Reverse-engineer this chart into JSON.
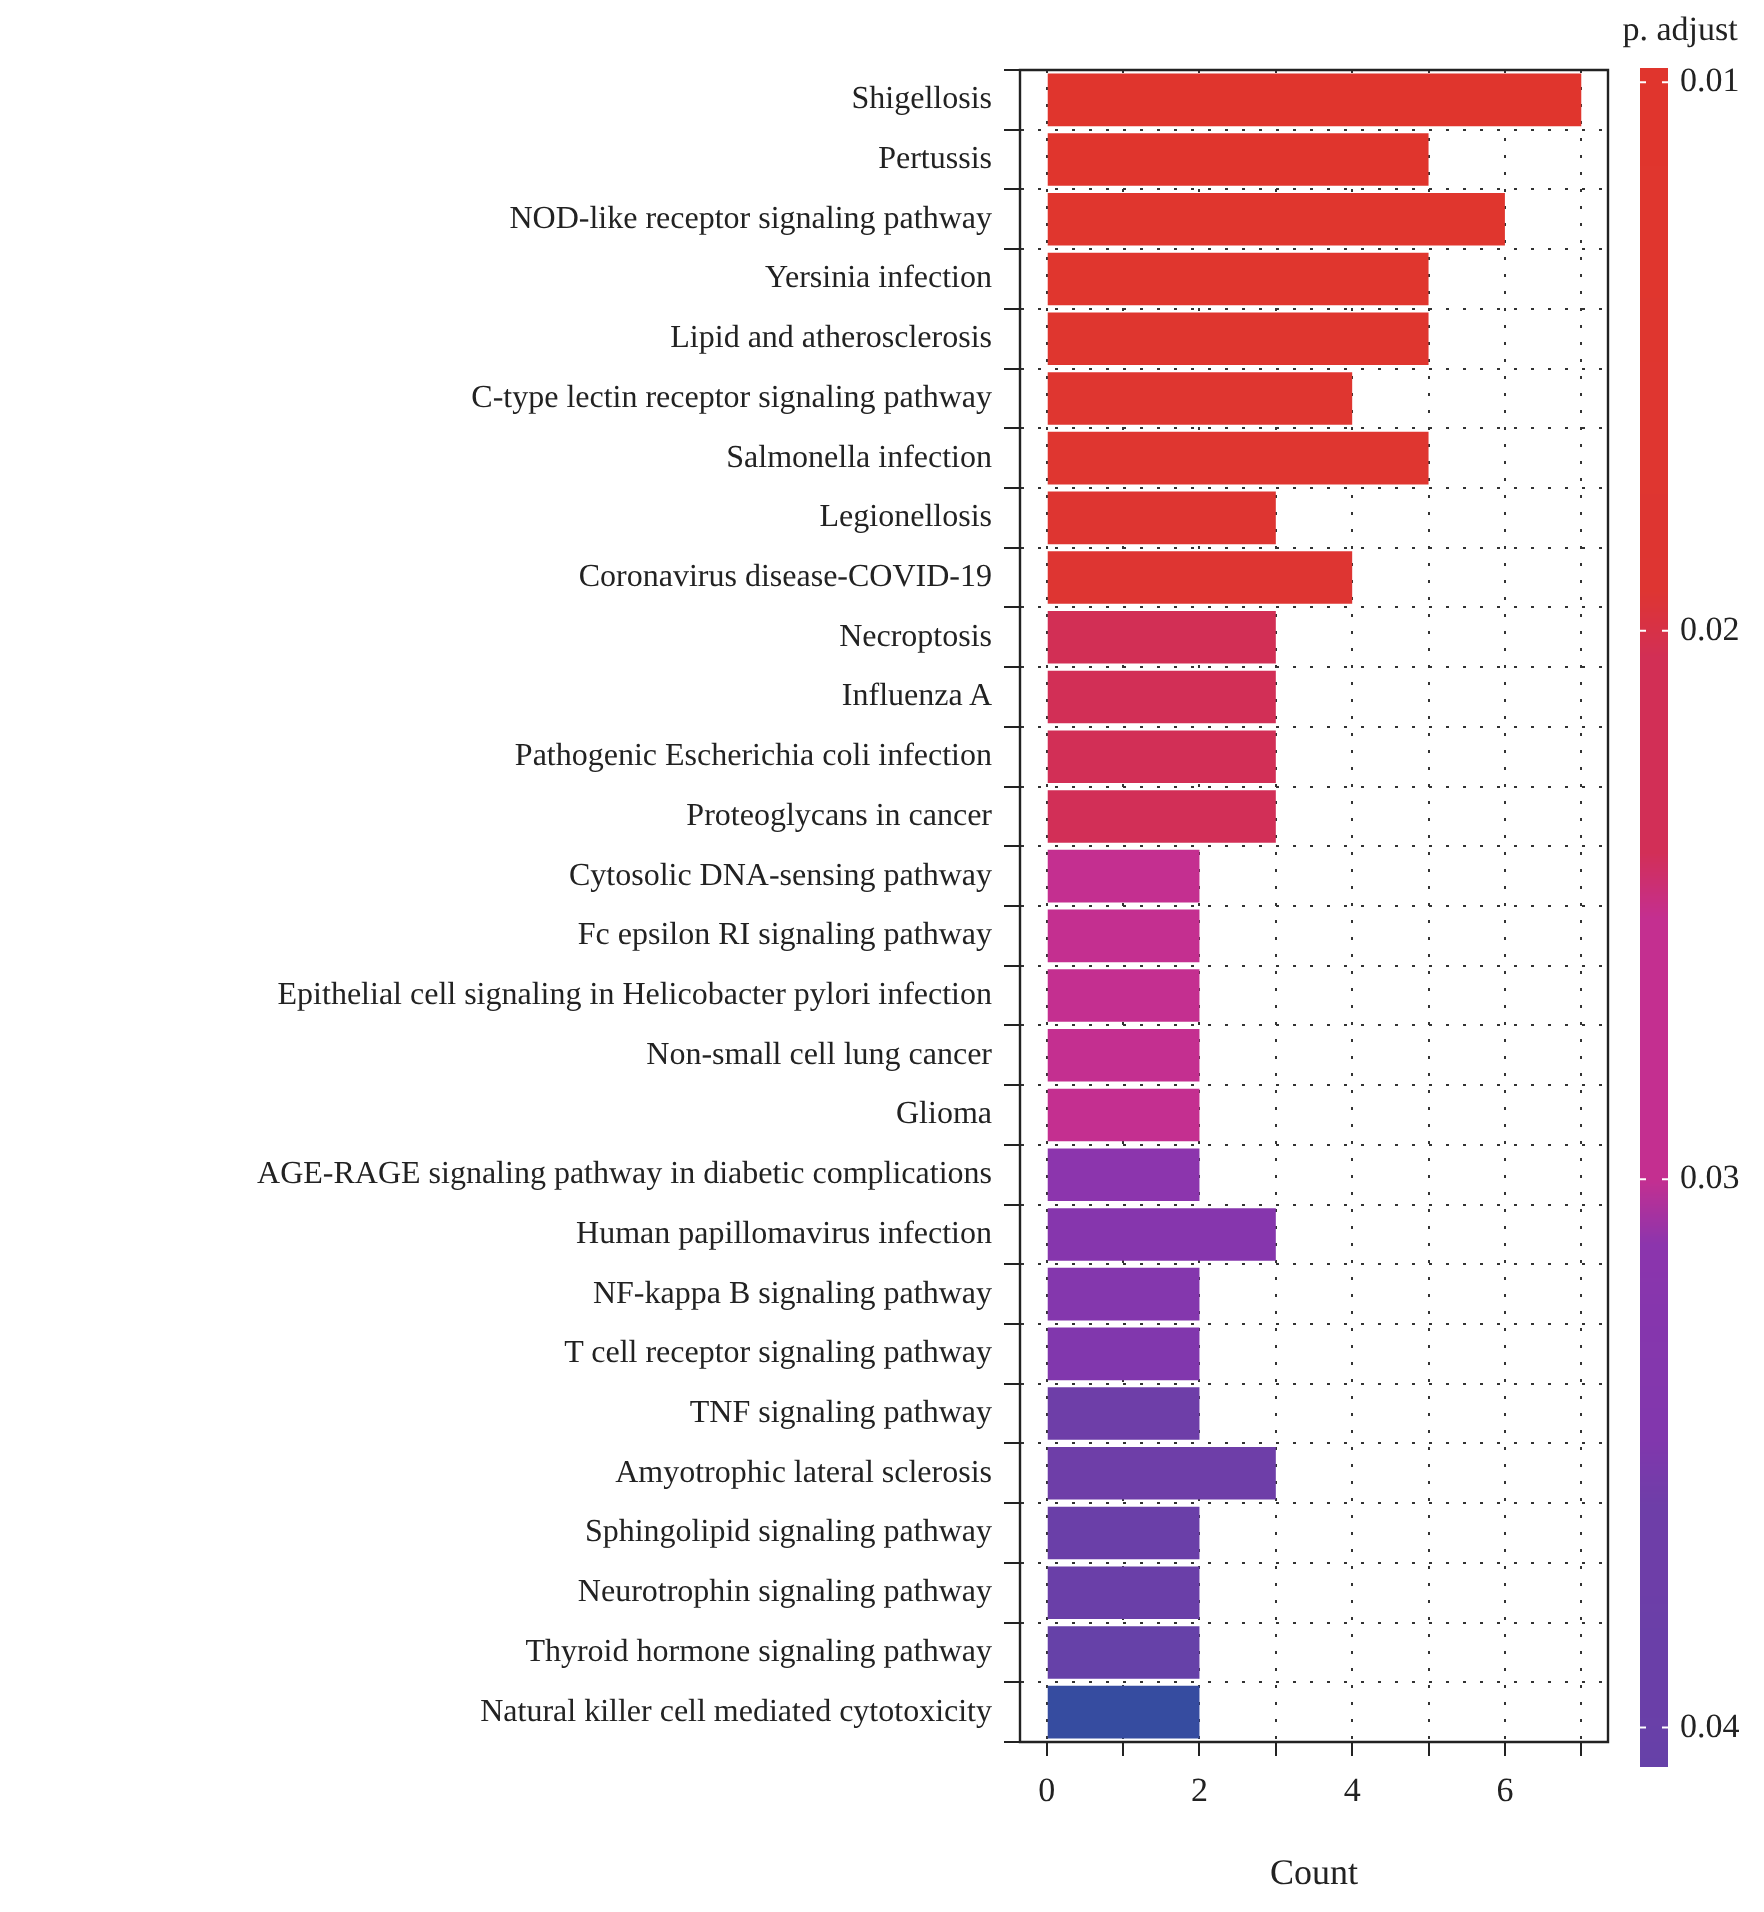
{
  "chart_data": {
    "type": "bar",
    "orientation": "horizontal",
    "xlabel": "Count",
    "clabel": "p. adjust",
    "categories": [
      "Shigellosis",
      "Pertussis",
      "NOD-like receptor signaling pathway",
      "Yersinia infection",
      "Lipid and atherosclerosis",
      "C-type lectin receptor signaling pathway",
      "Salmonella infection",
      "Legionellosis",
      "Coronavirus disease-COVID-19",
      "Necroptosis",
      "Influenza A",
      "Pathogenic Escherichia coli infection",
      "Proteoglycans in cancer",
      "Cytosolic DNA-sensing pathway",
      "Fc epsilon RI signaling pathway",
      "Epithelial cell signaling in Helicobacter pylori infection",
      "Non-small cell lung cancer",
      "Glioma",
      "AGE-RAGE signaling pathway in diabetic complications",
      "Human papillomavirus infection",
      "NF-kappa B signaling pathway",
      "T cell receptor signaling pathway",
      "TNF signaling pathway",
      "Amyotrophic lateral sclerosis",
      "Sphingolipid signaling pathway",
      "Neurotrophin signaling pathway",
      "Thyroid hormone signaling pathway",
      "Natural killer cell mediated cytotoxicity"
    ],
    "values": [
      7,
      5,
      6,
      5,
      5,
      4,
      5,
      3,
      4,
      3,
      3,
      3,
      3,
      2,
      2,
      2,
      2,
      2,
      2,
      3,
      2,
      2,
      2,
      3,
      2,
      2,
      2,
      2
    ],
    "colors": [
      "#e0352d",
      "#e0352d",
      "#e0362e",
      "#e0362e",
      "#df362f",
      "#df3630",
      "#df3630",
      "#de3531",
      "#de3532",
      "#d22f55",
      "#d22f56",
      "#d22f56",
      "#d22f57",
      "#c42f90",
      "#c42f90",
      "#c42f90",
      "#c42f90",
      "#c42f90",
      "#8c35ad",
      "#8636ad",
      "#8437ad",
      "#8137ad",
      "#6e3ea8",
      "#6e3ea8",
      "#6a3fa8",
      "#6a3fa8",
      "#6641a8",
      "#364ca0"
    ],
    "xlim": [
      -0.35,
      7.35
    ],
    "xticks": [
      0,
      {
        "value": 1,
        "label": null
      },
      2,
      {
        "value": 3,
        "label": null
      },
      4,
      {
        "value": 5,
        "label": null
      },
      6,
      {
        "value": 7,
        "label": null
      }
    ],
    "grid": true,
    "legend": false,
    "clim": [
      0.00974,
      0.0407
    ],
    "cticks": [
      0.01,
      0.02,
      0.03,
      0.04
    ]
  }
}
